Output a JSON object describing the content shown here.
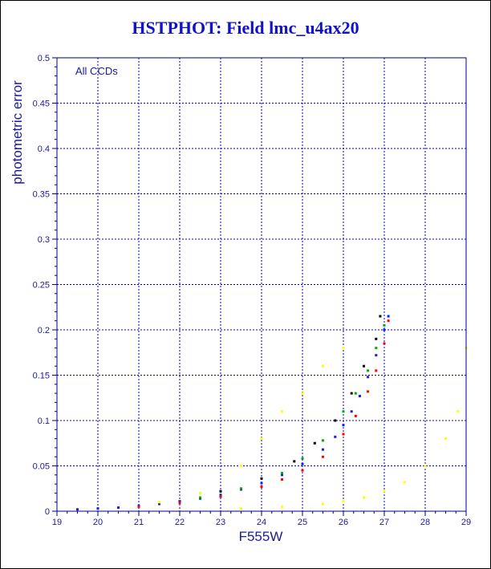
{
  "chart_data": {
    "type": "scatter",
    "title": "HSTPHOT: Field lmc_u4ax20",
    "xlabel": "F555W",
    "ylabel": "photometric error",
    "annotation": "All CCDs",
    "xlim": [
      19,
      29
    ],
    "ylim": [
      0,
      0.5
    ],
    "x_ticks": [
      "19",
      "20",
      "21",
      "22",
      "23",
      "24",
      "25",
      "26",
      "27",
      "28",
      "29"
    ],
    "y_ticks": [
      "0",
      "0.05",
      "0.1",
      "0.15",
      "0.2",
      "0.25",
      "0.3",
      "0.35",
      "0.4",
      "0.45",
      "0.5"
    ],
    "grid": true,
    "series": [
      {
        "color": "#1a1aff",
        "values": [
          [
            19.5,
            0.002
          ],
          [
            20.0,
            0.003
          ],
          [
            20.5,
            0.004
          ],
          [
            21.0,
            0.006
          ],
          [
            21.5,
            0.008
          ],
          [
            22.0,
            0.011
          ],
          [
            22.5,
            0.014
          ],
          [
            23.0,
            0.018
          ],
          [
            23.5,
            0.024
          ],
          [
            24.0,
            0.031
          ],
          [
            24.5,
            0.04
          ],
          [
            25.0,
            0.052
          ],
          [
            25.5,
            0.068
          ],
          [
            25.8,
            0.082
          ],
          [
            26.0,
            0.095
          ],
          [
            26.2,
            0.11
          ],
          [
            26.4,
            0.127
          ],
          [
            26.6,
            0.148
          ],
          [
            26.8,
            0.172
          ],
          [
            27.0,
            0.2
          ],
          [
            27.1,
            0.215
          ]
        ]
      },
      {
        "color": "#ff0000",
        "values": [
          [
            21.0,
            0.005
          ],
          [
            22.0,
            0.009
          ],
          [
            23.0,
            0.016
          ],
          [
            24.0,
            0.027
          ],
          [
            24.5,
            0.035
          ],
          [
            25.0,
            0.045
          ],
          [
            25.5,
            0.06
          ],
          [
            26.0,
            0.085
          ],
          [
            26.3,
            0.105
          ],
          [
            26.6,
            0.132
          ],
          [
            26.8,
            0.155
          ],
          [
            27.0,
            0.185
          ],
          [
            27.1,
            0.21
          ]
        ]
      },
      {
        "color": "#00aa00",
        "values": [
          [
            22.5,
            0.015
          ],
          [
            23.5,
            0.025
          ],
          [
            24.5,
            0.042
          ],
          [
            25.0,
            0.058
          ],
          [
            25.5,
            0.078
          ],
          [
            26.0,
            0.11
          ],
          [
            26.3,
            0.13
          ],
          [
            26.6,
            0.155
          ],
          [
            26.8,
            0.18
          ],
          [
            27.0,
            0.205
          ]
        ]
      },
      {
        "color": "#000000",
        "values": [
          [
            23.0,
            0.022
          ],
          [
            24.0,
            0.036
          ],
          [
            24.8,
            0.055
          ],
          [
            25.3,
            0.075
          ],
          [
            25.8,
            0.1
          ],
          [
            26.2,
            0.13
          ],
          [
            26.5,
            0.16
          ],
          [
            26.8,
            0.19
          ],
          [
            26.9,
            0.215
          ]
        ]
      },
      {
        "color": "#ffff00",
        "values": [
          [
            23.5,
            0.003
          ],
          [
            24.5,
            0.005
          ],
          [
            25.5,
            0.008
          ],
          [
            26.0,
            0.011
          ],
          [
            26.5,
            0.015
          ],
          [
            27.0,
            0.022
          ],
          [
            27.5,
            0.032
          ],
          [
            28.0,
            0.05
          ],
          [
            28.5,
            0.08
          ],
          [
            28.8,
            0.11
          ],
          [
            29.0,
            0.18
          ],
          [
            21.5,
            0.01
          ],
          [
            22.5,
            0.02
          ],
          [
            23.5,
            0.05
          ],
          [
            24.0,
            0.08
          ],
          [
            24.5,
            0.11
          ],
          [
            25.0,
            0.13
          ],
          [
            25.5,
            0.16
          ],
          [
            26.0,
            0.18
          ]
        ]
      }
    ]
  }
}
